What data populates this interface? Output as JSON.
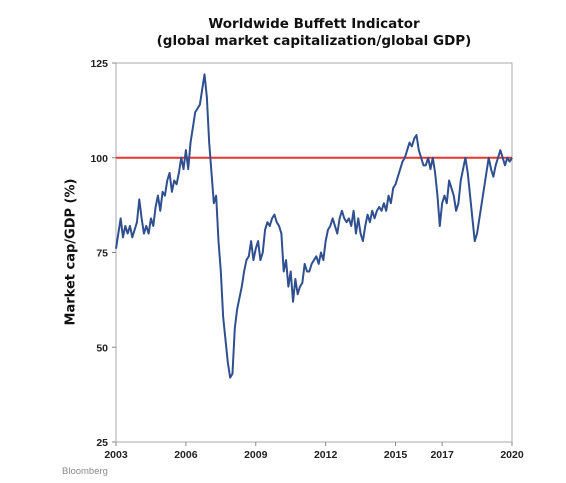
{
  "source": "Bloomberg",
  "chart_data": {
    "type": "line",
    "title": "Worldwide Buffett Indicator",
    "subtitle": "(global market capitalization/global GDP)",
    "xlabel": "",
    "ylabel": "Market cap/GDP (%)",
    "xlim": [
      2003,
      2020
    ],
    "ylim": [
      25,
      125
    ],
    "xticks": [
      2003,
      2006,
      2009,
      2012,
      2015,
      2017,
      2020
    ],
    "yticks": [
      25,
      50,
      75,
      100,
      125
    ],
    "grid": false,
    "legend": "none",
    "reference_line": {
      "y": 100,
      "color": "#e8372c"
    },
    "series": [
      {
        "color": "#2f4f8f",
        "x": [
          2003.0,
          2003.1,
          2003.2,
          2003.3,
          2003.4,
          2003.5,
          2003.6,
          2003.7,
          2003.8,
          2003.9,
          2004.0,
          2004.1,
          2004.2,
          2004.3,
          2004.4,
          2004.5,
          2004.6,
          2004.7,
          2004.8,
          2004.9,
          2005.0,
          2005.1,
          2005.2,
          2005.3,
          2005.4,
          2005.5,
          2005.6,
          2005.7,
          2005.8,
          2005.9,
          2006.0,
          2006.1,
          2006.2,
          2006.3,
          2006.4,
          2006.5,
          2006.6,
          2006.7,
          2006.8,
          2006.9,
          2007.0,
          2007.1,
          2007.2,
          2007.3,
          2007.4,
          2007.5,
          2007.6,
          2007.7,
          2007.8,
          2007.9,
          2008.0,
          2008.1,
          2008.2,
          2008.3,
          2008.4,
          2008.5,
          2008.6,
          2008.7,
          2008.8,
          2008.9,
          2009.0,
          2009.1,
          2009.2,
          2009.3,
          2009.4,
          2009.5,
          2009.6,
          2009.7,
          2009.8,
          2009.9,
          2010.0,
          2010.1,
          2010.2,
          2010.3,
          2010.4,
          2010.5,
          2010.6,
          2010.7,
          2010.8,
          2010.9,
          2011.0,
          2011.1,
          2011.2,
          2011.3,
          2011.4,
          2011.5,
          2011.6,
          2011.7,
          2011.8,
          2011.9,
          2012.0,
          2012.1,
          2012.2,
          2012.3,
          2012.4,
          2012.5,
          2012.6,
          2012.7,
          2012.8,
          2012.9,
          2013.0,
          2013.1,
          2013.2,
          2013.3,
          2013.4,
          2013.5,
          2013.6,
          2013.7,
          2013.8,
          2013.9,
          2014.0,
          2014.1,
          2014.2,
          2014.3,
          2014.4,
          2014.5,
          2014.6,
          2014.7,
          2014.8,
          2014.9,
          2015.0,
          2015.1,
          2015.2,
          2015.3,
          2015.4,
          2015.5,
          2015.6,
          2015.7,
          2015.8,
          2015.9,
          2016.0,
          2016.1,
          2016.2,
          2016.3,
          2016.4,
          2016.5,
          2016.6,
          2016.7,
          2016.8,
          2016.9,
          2017.0,
          2017.1,
          2017.2,
          2017.3,
          2017.4,
          2017.5,
          2017.6,
          2017.7,
          2017.8,
          2017.9,
          2018.0,
          2018.1,
          2018.2,
          2018.3,
          2018.4,
          2018.5,
          2018.6,
          2018.7,
          2018.8,
          2018.9,
          2019.0,
          2019.1,
          2019.2,
          2019.3,
          2019.4,
          2019.5,
          2019.6,
          2019.7,
          2019.8,
          2019.9,
          2020.0
        ],
        "values": [
          76,
          80,
          84,
          79,
          82,
          80,
          82,
          79,
          81,
          83,
          89,
          84,
          80,
          82,
          80,
          84,
          82,
          87,
          90,
          86,
          91,
          90,
          94,
          96,
          91,
          94,
          93,
          96,
          100,
          97,
          102,
          97,
          104,
          108,
          112,
          113,
          114,
          118,
          122,
          116,
          104,
          96,
          88,
          90,
          78,
          70,
          58,
          52,
          46,
          42,
          43,
          55,
          60,
          63,
          66,
          70,
          73,
          74,
          78,
          73,
          76,
          78,
          73,
          75,
          81,
          83,
          82,
          84,
          85,
          83,
          82,
          80,
          70,
          73,
          66,
          70,
          62,
          68,
          64,
          66,
          67,
          72,
          70,
          70,
          72,
          73,
          74,
          72,
          75,
          73,
          78,
          81,
          82,
          84,
          82,
          80,
          84,
          86,
          84,
          83,
          84,
          82,
          86,
          80,
          84,
          80,
          78,
          82,
          85,
          83,
          86,
          84,
          86,
          87,
          86,
          88,
          86,
          90,
          88,
          92,
          93,
          95,
          97,
          99,
          100,
          102,
          104,
          103,
          105,
          106,
          102,
          100,
          98,
          98,
          100,
          97,
          100,
          96,
          90,
          82,
          88,
          90,
          88,
          94,
          92,
          90,
          86,
          88,
          94,
          97,
          100,
          96,
          90,
          84,
          78,
          80,
          84,
          88,
          92,
          96,
          100,
          97,
          95,
          98,
          100,
          102,
          100,
          98,
          100,
          99,
          100
        ],
        "_note_values": "monthly-ish readings in percent"
      }
    ]
  }
}
